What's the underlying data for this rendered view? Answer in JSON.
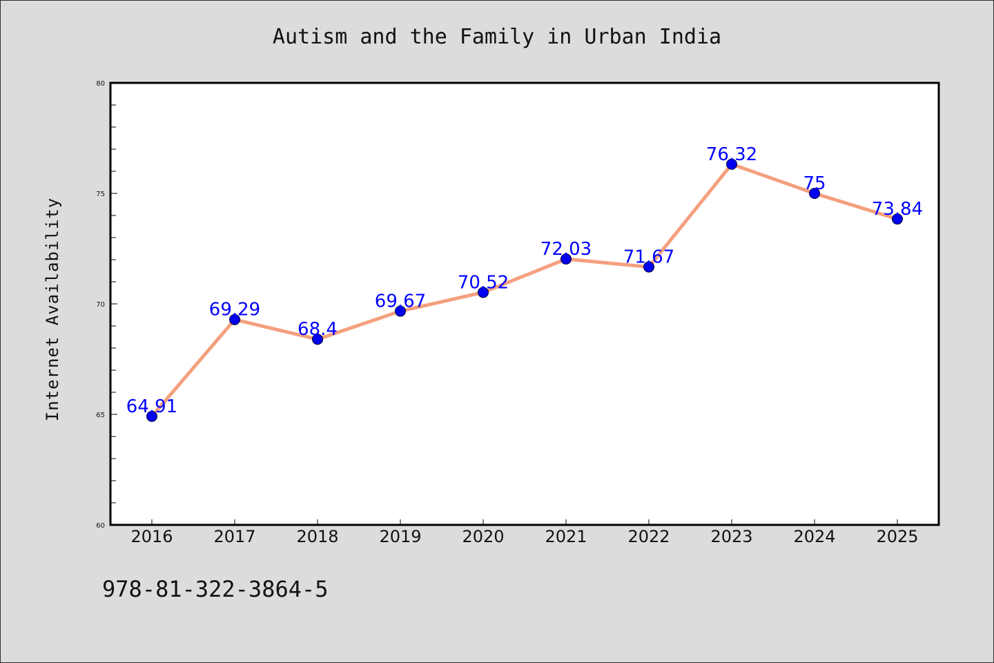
{
  "chart_data": {
    "type": "line",
    "title": "Autism and the Family in Urban India",
    "ylabel": "Internet Availability",
    "xlabel": "",
    "categories": [
      "2016",
      "2017",
      "2018",
      "2019",
      "2020",
      "2021",
      "2022",
      "2023",
      "2024",
      "2025"
    ],
    "series": [
      {
        "values": [
          64.91,
          69.29,
          68.4,
          69.67,
          70.52,
          72.03,
          71.67,
          76.32,
          75,
          73.84
        ]
      }
    ],
    "data_labels": [
      "64.91",
      "69.29",
      "68.4",
      "69.67",
      "70.52",
      "72.03",
      "71.67",
      "76.32",
      "75",
      "73.84"
    ],
    "ylim": [
      60,
      80
    ],
    "yticks": [
      60,
      65,
      70,
      75,
      80
    ],
    "grid": false,
    "colors": {
      "line": "#f4a07e",
      "marker": "#0000ee",
      "label": "#0000ff",
      "background": "#dcdcdc",
      "plot_area": "#ffffff"
    }
  },
  "footer": {
    "code": "978-81-322-3864-5"
  }
}
